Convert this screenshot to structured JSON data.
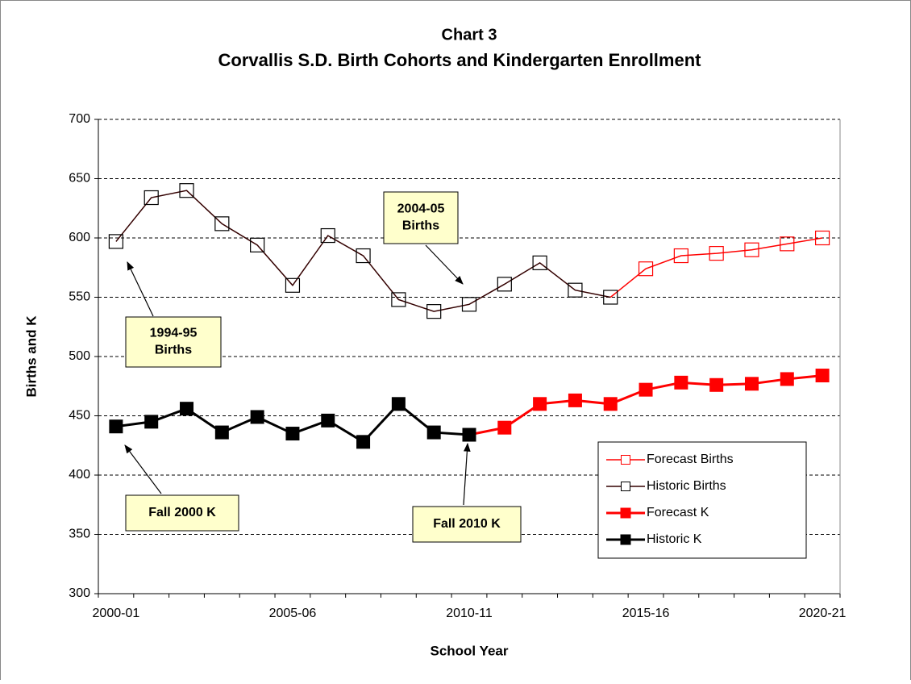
{
  "chart_data": {
    "type": "line",
    "title": "Chart 3",
    "subtitle": "Corvallis S.D. Birth Cohorts and Kindergarten Enrollment",
    "x_label": "School Year",
    "y_label": "Births and K",
    "categories": [
      "2000-01",
      null,
      null,
      null,
      null,
      "2005-06",
      null,
      null,
      null,
      null,
      "2010-11",
      null,
      null,
      null,
      null,
      "2015-16",
      null,
      null,
      null,
      null,
      "2020-21"
    ],
    "ylim": [
      300,
      700
    ],
    "yticks": [
      300,
      350,
      400,
      450,
      500,
      550,
      600,
      650,
      700
    ],
    "grid": true,
    "legend": "lower right",
    "series": [
      {
        "name": "Forecast Births",
        "color": "#ff0000",
        "marker": "open",
        "values": [
          null,
          null,
          null,
          null,
          null,
          null,
          null,
          null,
          null,
          null,
          null,
          null,
          null,
          null,
          550,
          574,
          585,
          587,
          590,
          595,
          600
        ]
      },
      {
        "name": "Historic Births",
        "color": "#330000",
        "marker": "open",
        "values": [
          597,
          634,
          640,
          612,
          594,
          560,
          602,
          585,
          548,
          538,
          544,
          561,
          579,
          556,
          550,
          null,
          null,
          null,
          null,
          null,
          null
        ]
      },
      {
        "name": "Forecast K",
        "color": "#ff0000",
        "marker": "filled",
        "values": [
          null,
          null,
          null,
          null,
          null,
          null,
          null,
          null,
          null,
          null,
          434,
          440,
          460,
          463,
          460,
          472,
          478,
          476,
          477,
          481,
          484
        ]
      },
      {
        "name": "Historic K",
        "color": "#000000",
        "marker": "filled",
        "values": [
          441,
          445,
          456,
          436,
          449,
          435,
          446,
          428,
          460,
          436,
          434,
          null,
          null,
          null,
          null,
          null,
          null,
          null,
          null,
          null,
          null
        ]
      }
    ],
    "annotations": [
      {
        "lines": [
          "2004-05",
          "Births"
        ]
      },
      {
        "lines": [
          "1994-95",
          "Births"
        ]
      },
      {
        "lines": [
          "Fall 2000 K"
        ]
      },
      {
        "lines": [
          "Fall 2010 K"
        ]
      }
    ]
  }
}
